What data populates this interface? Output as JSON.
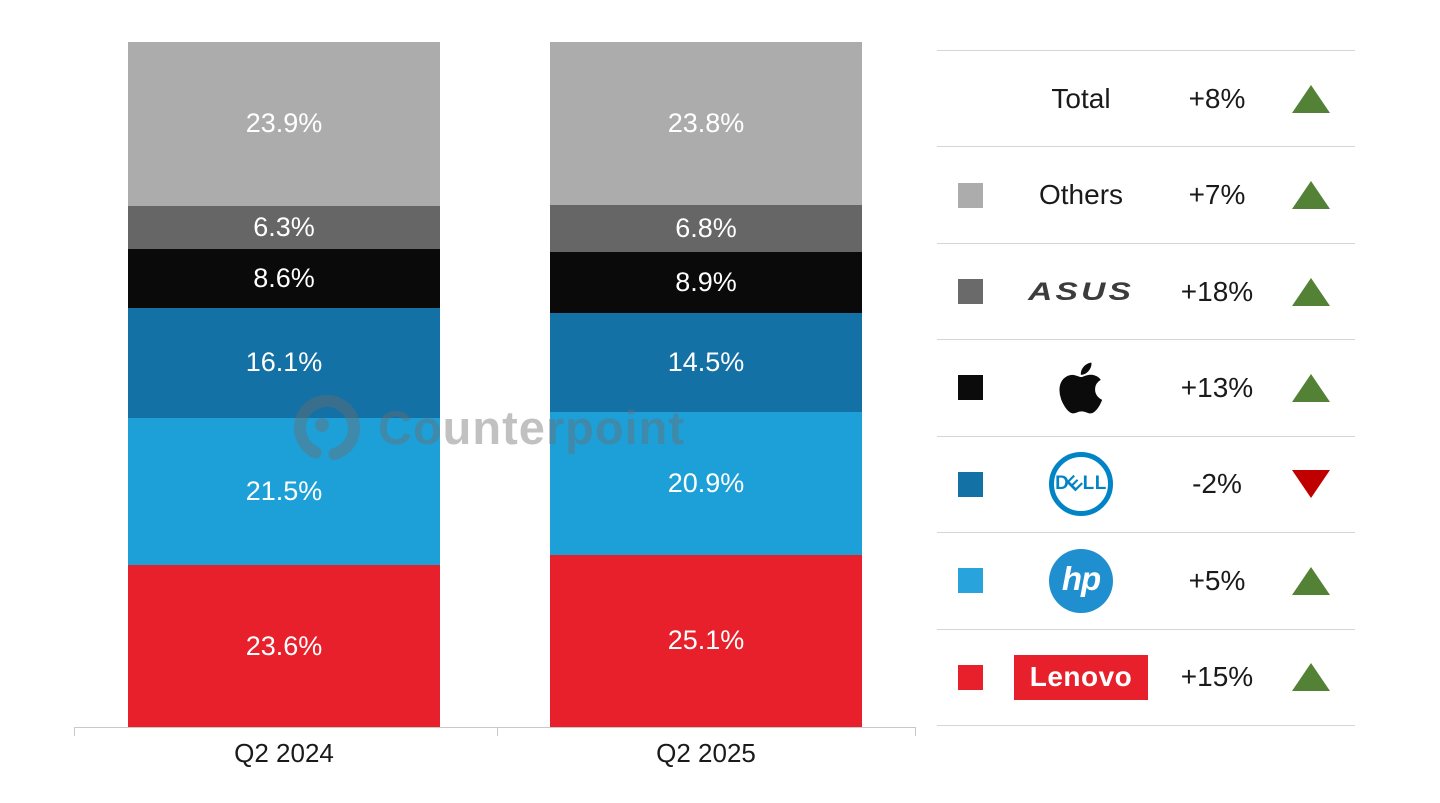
{
  "watermark": {
    "text": "Counterpoint"
  },
  "colors": {
    "up": "#538135",
    "down": "#C00000",
    "axis": "#C8C8C8",
    "separator": "#D5D5D5",
    "bar_label": "#FFFFFF",
    "dell_logo_blue": "#0084C6",
    "hp_logo_blue": "#1F8FD0",
    "lenovo_logo_red": "#E8202C"
  },
  "chart_data": {
    "type": "bar",
    "stacked": true,
    "orientation": "vertical",
    "categories": [
      "Q2 2024",
      "Q2 2025"
    ],
    "series_order": "top-to-bottom",
    "series": [
      {
        "name": "Others",
        "color": "#ACACAC",
        "values": [
          23.9,
          23.8
        ]
      },
      {
        "name": "ASUS",
        "color": "#666666",
        "values": [
          6.3,
          6.8
        ]
      },
      {
        "name": "Apple",
        "color": "#0A0A0A",
        "values": [
          8.6,
          8.9
        ]
      },
      {
        "name": "Dell",
        "color": "#1371A5",
        "values": [
          16.1,
          14.5
        ]
      },
      {
        "name": "HP",
        "color": "#1D9FD8",
        "values": [
          21.5,
          20.9
        ]
      },
      {
        "name": "Lenovo",
        "color": "#E8202C",
        "values": [
          23.6,
          25.1
        ]
      }
    ],
    "value_suffix": "%",
    "ylim": [
      0,
      100
    ],
    "grid": false,
    "legend_position": "right"
  },
  "legend": {
    "rows": [
      {
        "label": "Total",
        "change": "+8%",
        "direction": "up",
        "swatch": null
      },
      {
        "label": "Others",
        "change": "+7%",
        "direction": "up",
        "swatch": "#ACACAC"
      },
      {
        "label": "ASUS",
        "change": "+18%",
        "direction": "up",
        "swatch": "#6A6A6A",
        "logo_text": "ASUS"
      },
      {
        "label": "Apple",
        "change": "+13%",
        "direction": "up",
        "swatch": "#0B0B0B"
      },
      {
        "label": "Dell",
        "change": "-2%",
        "direction": "down",
        "swatch": "#1371A5",
        "logo_letters": [
          "D",
          "E",
          "L",
          "L"
        ]
      },
      {
        "label": "HP",
        "change": "+5%",
        "direction": "up",
        "swatch": "#29A3DC",
        "logo_text": "hp"
      },
      {
        "label": "Lenovo",
        "change": "+15%",
        "direction": "up",
        "swatch": "#E8202C",
        "logo_text": "Lenovo"
      }
    ]
  }
}
